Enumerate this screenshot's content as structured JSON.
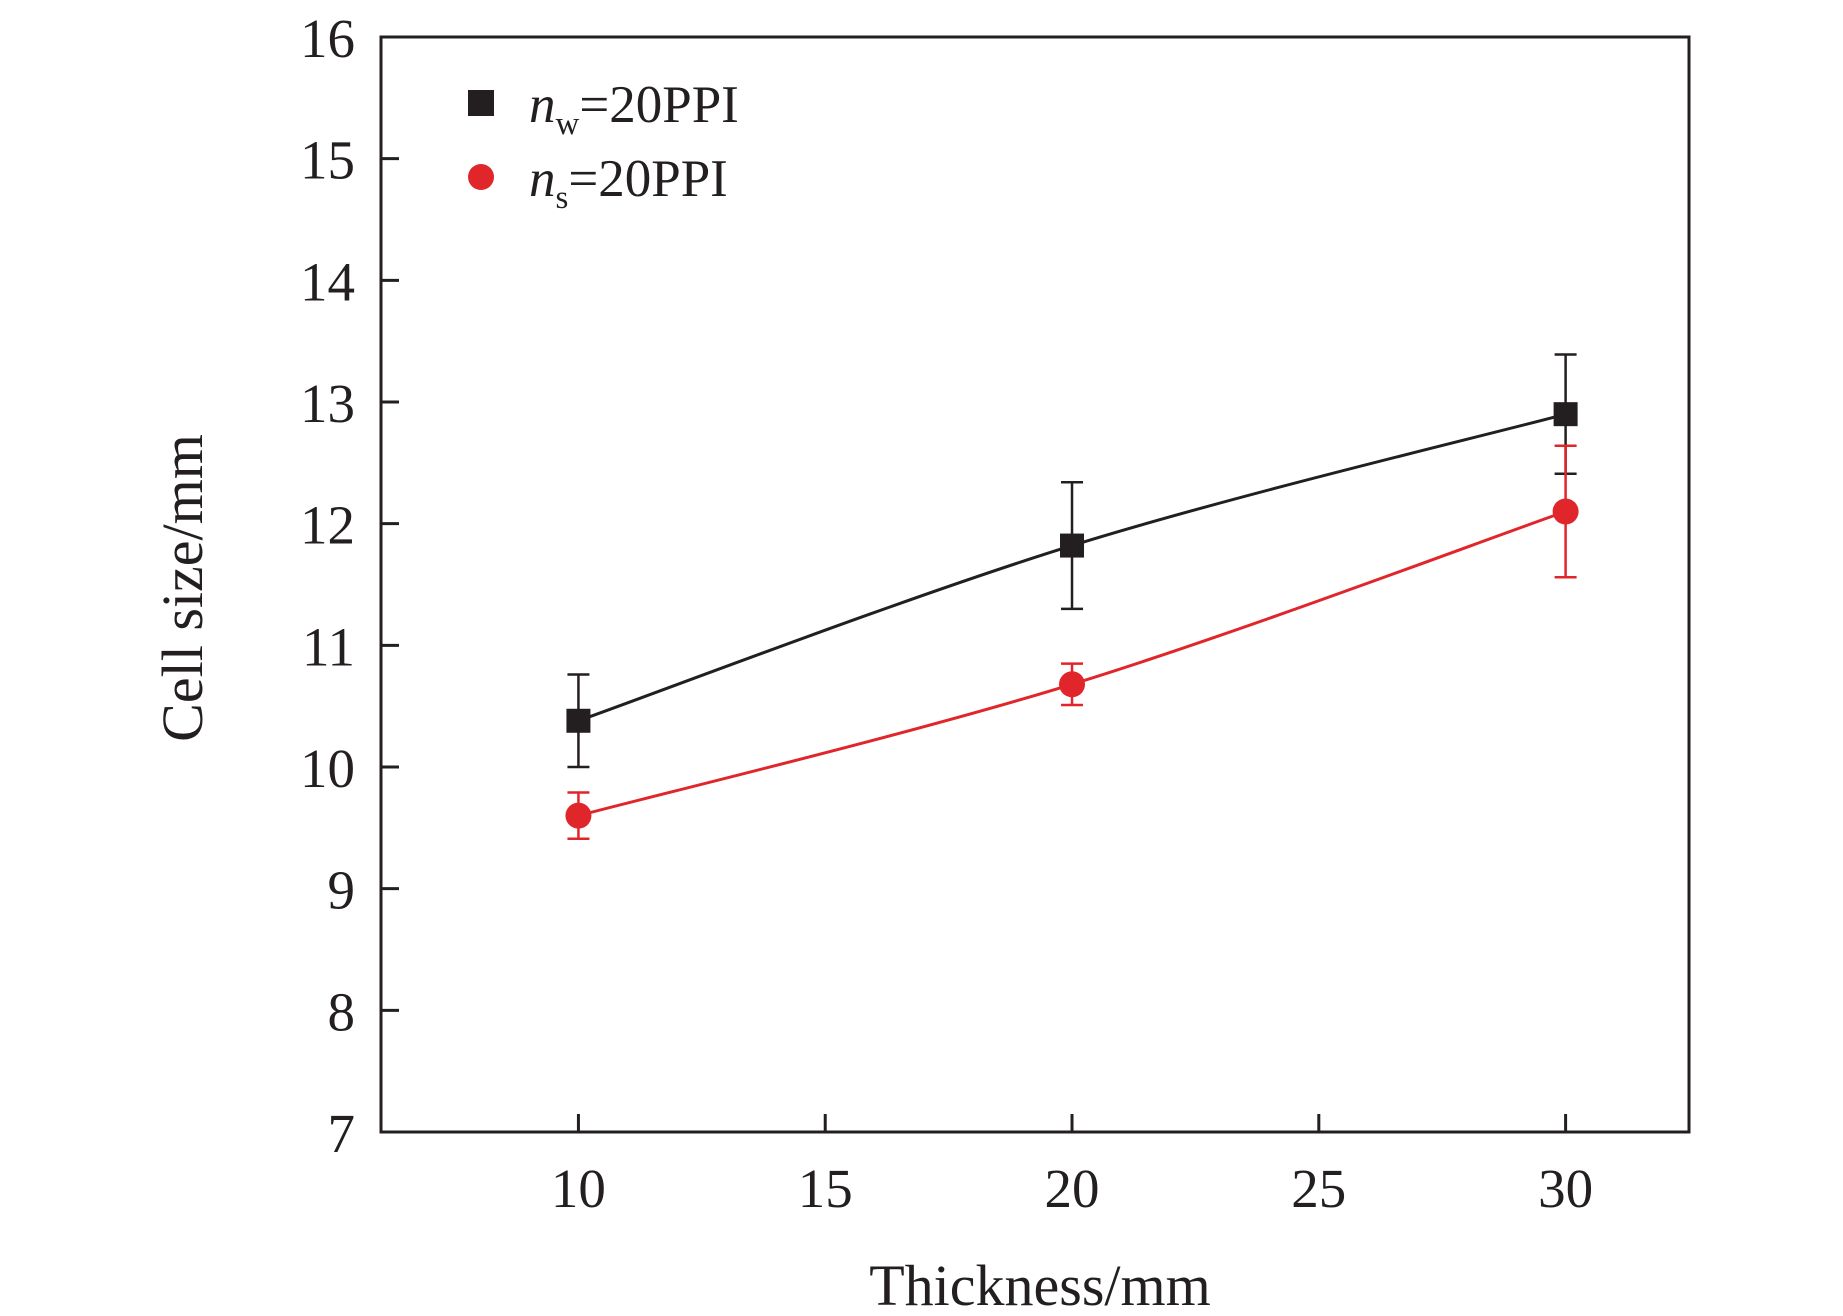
{
  "chart_data": {
    "type": "line",
    "xlabel": "Thickness/mm",
    "ylabel": "Cell size/mm",
    "xlim": [
      6,
      32.5
    ],
    "ylim": [
      7,
      16
    ],
    "x_ticks": [
      10,
      15,
      20,
      25,
      30
    ],
    "y_ticks": [
      7,
      8,
      9,
      10,
      11,
      12,
      13,
      14,
      15,
      16
    ],
    "x_tick_labels": [
      "10",
      "15",
      "20",
      "25",
      "30"
    ],
    "y_tick_labels": [
      "7",
      "8",
      "9",
      "10",
      "11",
      "12",
      "13",
      "14",
      "15",
      "16"
    ],
    "grid": false,
    "legend_position": "top-left",
    "series": [
      {
        "name": "nw=20PPI",
        "label_base": "n",
        "label_sub": "w",
        "label_rest": "=20PPI",
        "marker": "square",
        "color": "#231f20",
        "x": [
          10,
          20,
          30
        ],
        "y": [
          10.38,
          11.82,
          12.9
        ],
        "err": [
          0.38,
          0.52,
          0.49
        ]
      },
      {
        "name": "ns=20PPI",
        "label_base": "n",
        "label_sub": "s",
        "label_rest": "=20PPI",
        "marker": "circle",
        "color": "#e0262a",
        "x": [
          10,
          20,
          30
        ],
        "y": [
          9.6,
          10.68,
          12.1
        ],
        "err": [
          0.19,
          0.17,
          0.54
        ]
      }
    ]
  }
}
